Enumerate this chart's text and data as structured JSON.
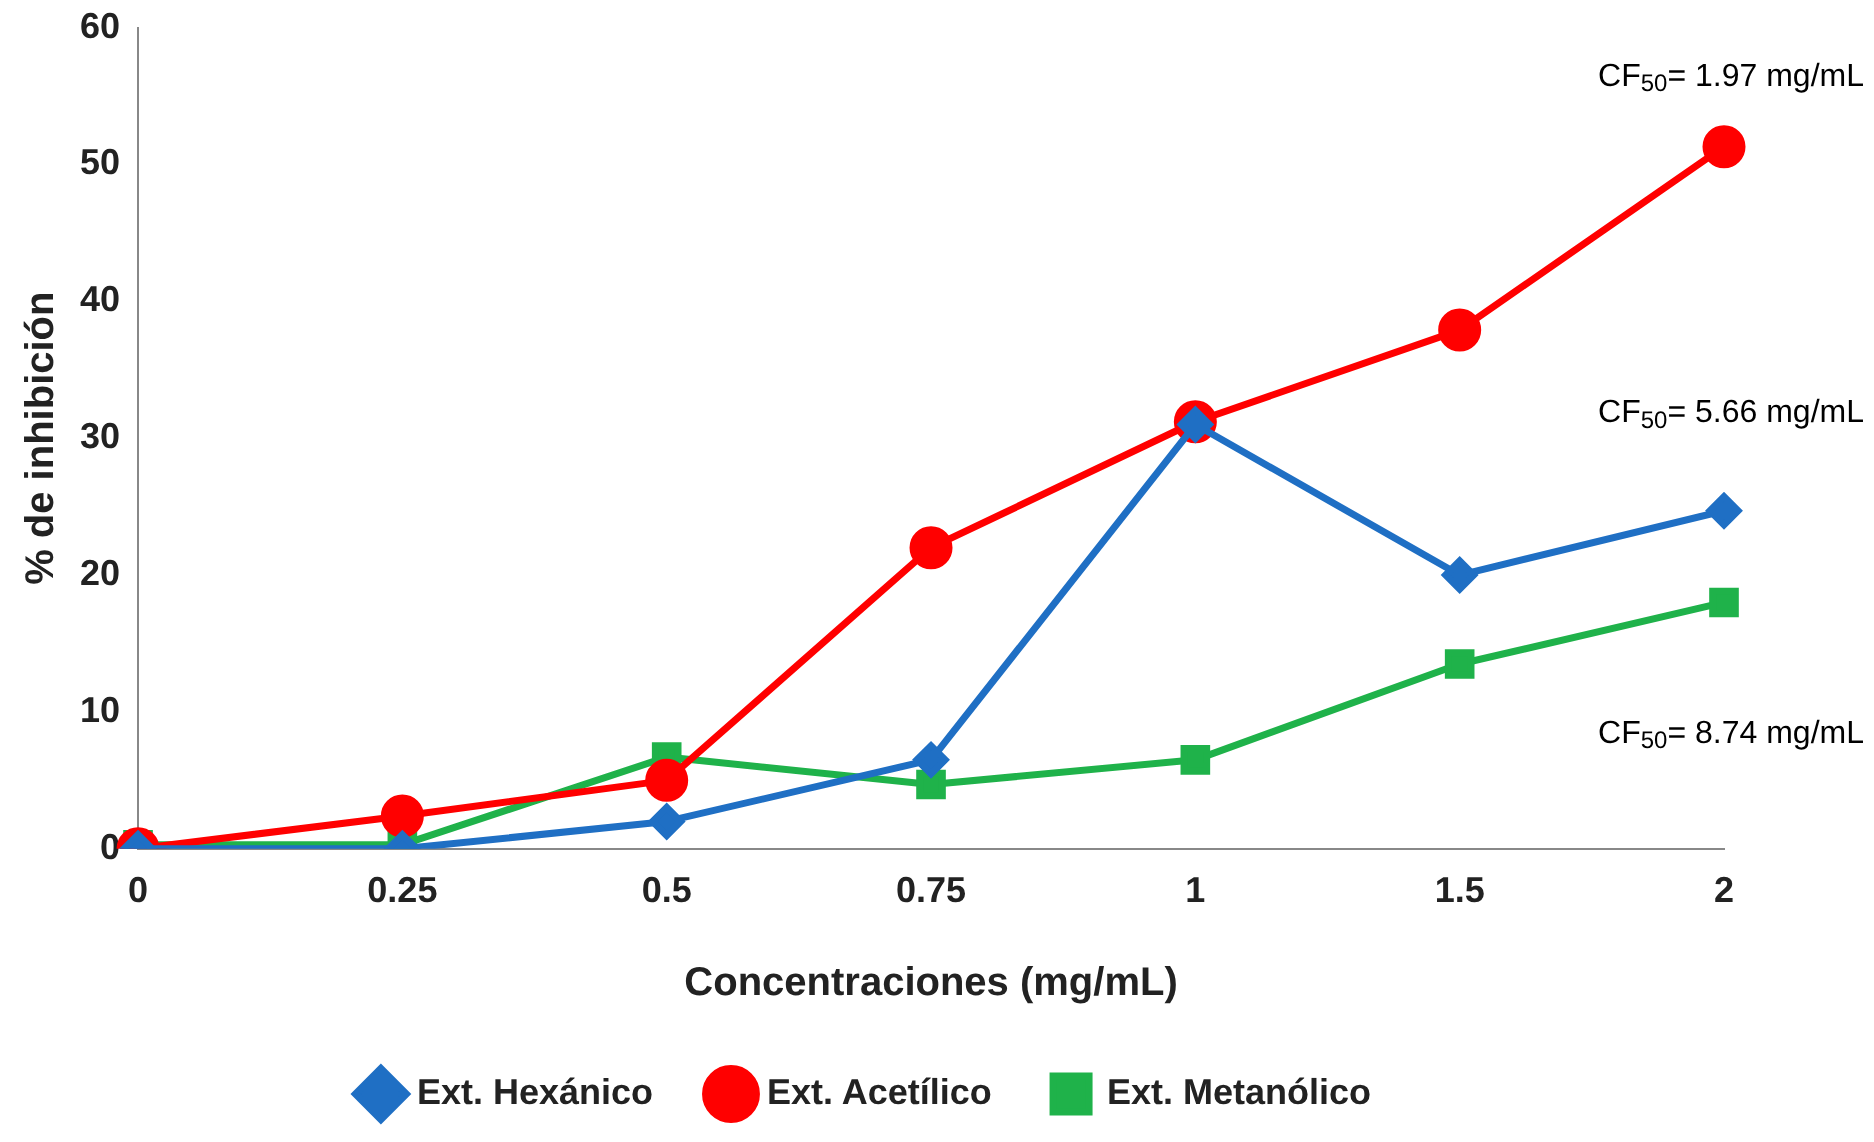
{
  "chart_data": {
    "type": "line",
    "xlabel": "Concentraciones (mg/mL)",
    "ylabel": "% de inhibición",
    "categories": [
      "0",
      "0.25",
      "0.5",
      "0.75",
      "1",
      "1.5",
      "2"
    ],
    "series": [
      {
        "name": "Ext. Hexánico",
        "color": "#1f6fc4",
        "marker": "diamond",
        "values": [
          0,
          0,
          2,
          6.5,
          31,
          20,
          24.7
        ]
      },
      {
        "name": "Ext. Acetílico",
        "color": "#ff0000",
        "marker": "circle",
        "values": [
          0,
          2.4,
          5,
          22,
          31.2,
          37.9,
          51.3
        ]
      },
      {
        "name": "Ext. Metanólico",
        "color": "#1fb24a",
        "marker": "square",
        "values": [
          0.3,
          0.3,
          6.7,
          4.7,
          6.5,
          13.5,
          18
        ]
      }
    ],
    "ylim": [
      0,
      60
    ],
    "yticks": [
      0,
      10,
      20,
      30,
      40,
      50,
      60
    ],
    "grid": false,
    "legend": "bottom",
    "annotations": [
      "CF$_{50}$= 1.97 mg/mL",
      "CF$_{50}$= 5.66 mg/mL",
      "CF$_{50}$= 8.74 mg/mL"
    ]
  }
}
